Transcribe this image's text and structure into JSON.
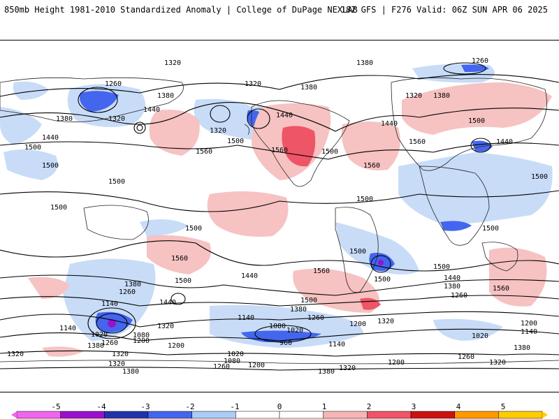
{
  "header": {
    "left_title": "850mb Height 1981-2010 Standardized Anomaly | College of DuPage NEXLAB",
    "right_title": "18Z GFS | F276 Valid: 06Z SUN APR 06 2025"
  },
  "colorbar": {
    "ticks": [
      "-5",
      "-4",
      "-3",
      "-2",
      "-1",
      "0",
      "1",
      "2",
      "3",
      "4",
      "5"
    ],
    "colors": [
      "#ee66ee",
      "#9911cc",
      "#2233aa",
      "#4466ee",
      "#aaccf6",
      "#ffffff",
      "#ffffff",
      "#f6b6b6",
      "#ee5566",
      "#cc1111",
      "#ff9900",
      "#ffcc00"
    ]
  },
  "contour_labels": {
    "c1320": "1320",
    "c1380": "1380",
    "c1260": "1260",
    "c1440": "1440",
    "c1500": "1500",
    "c1560": "1560",
    "c1140": "1140",
    "c1200": "1200",
    "c1080": "1080",
    "c1020": "1020",
    "c960": "960"
  }
}
